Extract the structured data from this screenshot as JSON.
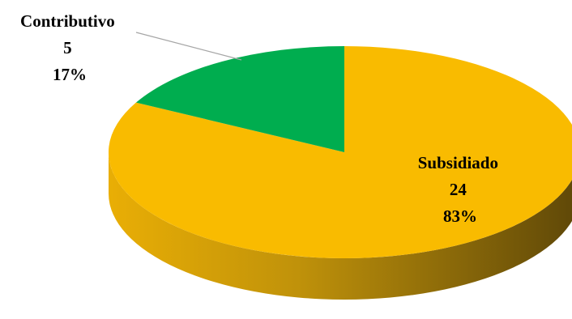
{
  "chart_data": {
    "type": "pie",
    "style": "3d",
    "categories": [
      "Subsidiado",
      "Contributivo"
    ],
    "values": [
      24,
      5
    ],
    "percentages": [
      "83%",
      "17%"
    ],
    "colors": {
      "Subsidiado": "#F9BB00",
      "Contributivo": "#00AD4F"
    },
    "side_colors": {
      "Subsidiado": "#7B5C07",
      "Contributivo": "#0F6B33"
    },
    "leader_line_color": "#A6A6A6",
    "data_labels": [
      {
        "category": "Subsidiado",
        "value": "24",
        "percent": "83%"
      },
      {
        "category": "Contributivo",
        "value": "5",
        "percent": "17%"
      }
    ]
  }
}
